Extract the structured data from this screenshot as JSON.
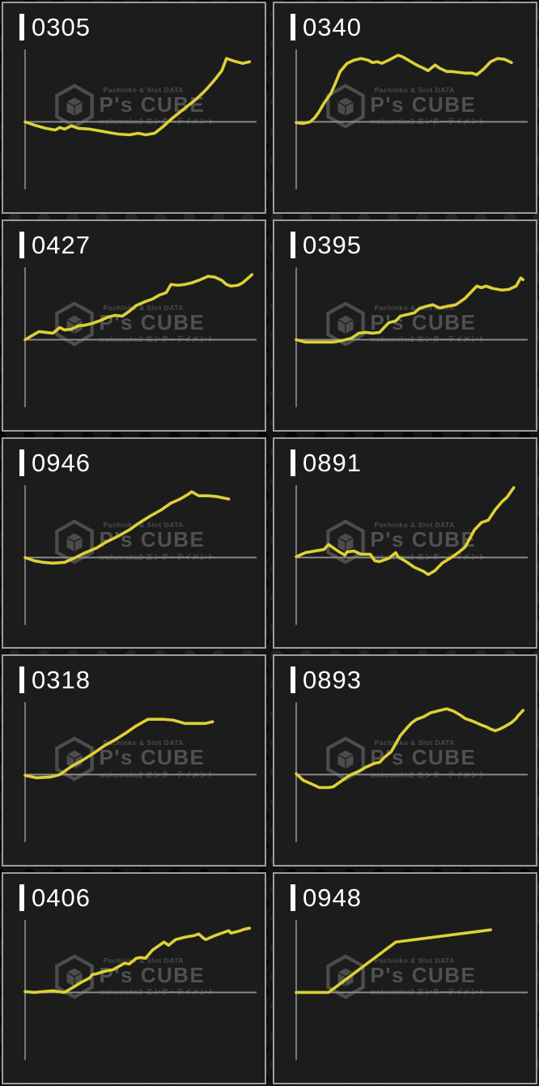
{
  "watermark": {
    "top_text": "Pachinko & Slot DATA",
    "brand": "P's CUBE",
    "bottom_text": "wakuwaku2 エンターテイメント"
  },
  "colors": {
    "page_bg": "#131313",
    "panel_bg": "#1c1c1c",
    "panel_border": "#9d9d9d",
    "axis": "#8f8f8f",
    "line": "#ddd136",
    "label_text": "#ffffff",
    "watermark_text": "#4c4c4c"
  },
  "chart_data": [
    {
      "type": "line",
      "label": "0305",
      "xlabel": "",
      "ylabel": "",
      "x_range": [
        0,
        100
      ],
      "baseline": 0,
      "y_unit": "px_from_baseline(+up)",
      "points": [
        [
          0,
          0
        ],
        [
          4,
          -4
        ],
        [
          9,
          -8
        ],
        [
          13,
          -10
        ],
        [
          15,
          -7
        ],
        [
          17,
          -9
        ],
        [
          20,
          -5
        ],
        [
          23,
          -8
        ],
        [
          28,
          -9
        ],
        [
          34,
          -12
        ],
        [
          40,
          -15
        ],
        [
          45,
          -16
        ],
        [
          49,
          -14
        ],
        [
          52,
          -16
        ],
        [
          56,
          -14
        ],
        [
          60,
          -5
        ],
        [
          63,
          3
        ],
        [
          66,
          10
        ],
        [
          70,
          19
        ],
        [
          74,
          28
        ],
        [
          78,
          39
        ],
        [
          82,
          52
        ],
        [
          85,
          63
        ],
        [
          87,
          78
        ],
        [
          90,
          75
        ],
        [
          94,
          72
        ],
        [
          97,
          74
        ]
      ]
    },
    {
      "type": "line",
      "label": "0340",
      "xlabel": "",
      "ylabel": "",
      "x_range": [
        0,
        100
      ],
      "baseline": 0,
      "y_unit": "px_from_baseline(+up)",
      "points": [
        [
          0,
          -1
        ],
        [
          3,
          -2
        ],
        [
          6,
          0
        ],
        [
          8,
          5
        ],
        [
          10,
          13
        ],
        [
          12,
          23
        ],
        [
          15,
          35
        ],
        [
          17,
          48
        ],
        [
          19,
          62
        ],
        [
          22,
          72
        ],
        [
          25,
          76
        ],
        [
          28,
          78
        ],
        [
          31,
          76
        ],
        [
          33,
          73
        ],
        [
          35,
          74
        ],
        [
          37,
          72
        ],
        [
          40,
          76
        ],
        [
          42,
          79
        ],
        [
          44,
          82
        ],
        [
          46,
          80
        ],
        [
          49,
          75
        ],
        [
          52,
          70
        ],
        [
          55,
          66
        ],
        [
          57,
          63
        ],
        [
          60,
          70
        ],
        [
          62,
          66
        ],
        [
          65,
          62
        ],
        [
          67,
          62
        ],
        [
          70,
          61
        ],
        [
          73,
          60
        ],
        [
          76,
          60
        ],
        [
          78,
          58
        ],
        [
          81,
          65
        ],
        [
          84,
          74
        ],
        [
          87,
          78
        ],
        [
          90,
          77
        ],
        [
          93,
          73
        ]
      ]
    },
    {
      "type": "line",
      "label": "0427",
      "xlabel": "",
      "ylabel": "",
      "x_range": [
        0,
        100
      ],
      "baseline": 0,
      "y_unit": "px_from_baseline(+up)",
      "points": [
        [
          0,
          0
        ],
        [
          3,
          5
        ],
        [
          6,
          10
        ],
        [
          9,
          9
        ],
        [
          12,
          8
        ],
        [
          15,
          15
        ],
        [
          17,
          12
        ],
        [
          20,
          13
        ],
        [
          23,
          17
        ],
        [
          26,
          18
        ],
        [
          29,
          20
        ],
        [
          32,
          23
        ],
        [
          36,
          28
        ],
        [
          39,
          30
        ],
        [
          42,
          29
        ],
        [
          45,
          35
        ],
        [
          48,
          42
        ],
        [
          52,
          47
        ],
        [
          55,
          50
        ],
        [
          58,
          55
        ],
        [
          61,
          58
        ],
        [
          63,
          68
        ],
        [
          66,
          67
        ],
        [
          69,
          68
        ],
        [
          72,
          70
        ],
        [
          75,
          73
        ],
        [
          79,
          78
        ],
        [
          82,
          77
        ],
        [
          85,
          73
        ],
        [
          87,
          68
        ],
        [
          89,
          66
        ],
        [
          92,
          67
        ],
        [
          94,
          70
        ],
        [
          96,
          75
        ],
        [
          98,
          80
        ]
      ]
    },
    {
      "type": "line",
      "label": "0395",
      "xlabel": "",
      "ylabel": "",
      "x_range": [
        0,
        100
      ],
      "baseline": 0,
      "y_unit": "px_from_baseline(+up)",
      "points": [
        [
          0,
          0
        ],
        [
          4,
          -3
        ],
        [
          8,
          -3
        ],
        [
          12,
          -3
        ],
        [
          16,
          -3
        ],
        [
          20,
          -1
        ],
        [
          24,
          2
        ],
        [
          27,
          8
        ],
        [
          30,
          9
        ],
        [
          33,
          8
        ],
        [
          36,
          9
        ],
        [
          40,
          21
        ],
        [
          43,
          23
        ],
        [
          45,
          29
        ],
        [
          48,
          31
        ],
        [
          51,
          33
        ],
        [
          53,
          38
        ],
        [
          56,
          41
        ],
        [
          59,
          43
        ],
        [
          62,
          39
        ],
        [
          65,
          41
        ],
        [
          69,
          43
        ],
        [
          73,
          51
        ],
        [
          76,
          60
        ],
        [
          78,
          66
        ],
        [
          80,
          64
        ],
        [
          82,
          66
        ],
        [
          85,
          63
        ],
        [
          89,
          61
        ],
        [
          92,
          62
        ],
        [
          95,
          66
        ],
        [
          97,
          76
        ],
        [
          98,
          74
        ]
      ]
    },
    {
      "type": "line",
      "label": "0946",
      "xlabel": "",
      "ylabel": "",
      "x_range": [
        0,
        100
      ],
      "baseline": 0,
      "y_unit": "px_from_baseline(+up)",
      "points": [
        [
          0,
          0
        ],
        [
          4,
          -4
        ],
        [
          8,
          -6
        ],
        [
          12,
          -7
        ],
        [
          17,
          -6
        ],
        [
          21,
          -1
        ],
        [
          26,
          6
        ],
        [
          31,
          12
        ],
        [
          35,
          19
        ],
        [
          40,
          26
        ],
        [
          45,
          34
        ],
        [
          49,
          42
        ],
        [
          54,
          51
        ],
        [
          59,
          59
        ],
        [
          63,
          67
        ],
        [
          67,
          72
        ],
        [
          70,
          77
        ],
        [
          72,
          81
        ],
        [
          75,
          76
        ],
        [
          79,
          76
        ],
        [
          83,
          75
        ],
        [
          88,
          72
        ]
      ]
    },
    {
      "type": "line",
      "label": "0891",
      "xlabel": "",
      "ylabel": "",
      "x_range": [
        0,
        100
      ],
      "baseline": 0,
      "y_unit": "px_from_baseline(+up)",
      "points": [
        [
          0,
          1
        ],
        [
          4,
          6
        ],
        [
          8,
          8
        ],
        [
          12,
          10
        ],
        [
          14,
          16
        ],
        [
          18,
          8
        ],
        [
          21,
          3
        ],
        [
          22,
          7
        ],
        [
          25,
          8
        ],
        [
          28,
          4
        ],
        [
          32,
          4
        ],
        [
          34,
          -4
        ],
        [
          36,
          -5
        ],
        [
          40,
          -1
        ],
        [
          43,
          6
        ],
        [
          44,
          1
        ],
        [
          48,
          -6
        ],
        [
          51,
          -12
        ],
        [
          55,
          -17
        ],
        [
          57,
          -21
        ],
        [
          60,
          -16
        ],
        [
          63,
          -7
        ],
        [
          67,
          0
        ],
        [
          70,
          6
        ],
        [
          73,
          13
        ],
        [
          77,
          34
        ],
        [
          80,
          43
        ],
        [
          83,
          46
        ],
        [
          86,
          59
        ],
        [
          89,
          69
        ],
        [
          91,
          74
        ],
        [
          94,
          86
        ]
      ]
    },
    {
      "type": "line",
      "label": "0318",
      "xlabel": "",
      "ylabel": "",
      "x_range": [
        0,
        100
      ],
      "baseline": 0,
      "y_unit": "px_from_baseline(+up)",
      "points": [
        [
          0,
          -1
        ],
        [
          5,
          -4
        ],
        [
          11,
          -3
        ],
        [
          15,
          0
        ],
        [
          20,
          10
        ],
        [
          25,
          18
        ],
        [
          30,
          27
        ],
        [
          34,
          35
        ],
        [
          39,
          43
        ],
        [
          44,
          52
        ],
        [
          48,
          60
        ],
        [
          53,
          68
        ],
        [
          60,
          68
        ],
        [
          64,
          67
        ],
        [
          69,
          63
        ],
        [
          74,
          63
        ],
        [
          78,
          63
        ],
        [
          81,
          65
        ]
      ]
    },
    {
      "type": "line",
      "label": "0893",
      "xlabel": "",
      "ylabel": "",
      "x_range": [
        0,
        100
      ],
      "baseline": 0,
      "y_unit": "px_from_baseline(+up)",
      "points": [
        [
          0,
          1
        ],
        [
          3,
          -7
        ],
        [
          7,
          -12
        ],
        [
          10,
          -16
        ],
        [
          14,
          -16
        ],
        [
          16,
          -15
        ],
        [
          20,
          -7
        ],
        [
          23,
          -1
        ],
        [
          27,
          4
        ],
        [
          30,
          9
        ],
        [
          34,
          14
        ],
        [
          36,
          15
        ],
        [
          38,
          21
        ],
        [
          41,
          28
        ],
        [
          43,
          38
        ],
        [
          45,
          48
        ],
        [
          48,
          58
        ],
        [
          50,
          64
        ],
        [
          52,
          68
        ],
        [
          55,
          71
        ],
        [
          58,
          76
        ],
        [
          62,
          79
        ],
        [
          65,
          81
        ],
        [
          68,
          78
        ],
        [
          71,
          73
        ],
        [
          73,
          69
        ],
        [
          76,
          66
        ],
        [
          80,
          61
        ],
        [
          82,
          59
        ],
        [
          84,
          56
        ],
        [
          86,
          54
        ],
        [
          88,
          56
        ],
        [
          90,
          59
        ],
        [
          93,
          64
        ],
        [
          95,
          69
        ],
        [
          96,
          73
        ],
        [
          98,
          79
        ]
      ]
    },
    {
      "type": "line",
      "label": "0406",
      "xlabel": "",
      "ylabel": "",
      "x_range": [
        0,
        100
      ],
      "baseline": 0,
      "y_unit": "px_from_baseline(+up)",
      "points": [
        [
          0,
          1
        ],
        [
          4,
          0
        ],
        [
          8,
          1
        ],
        [
          12,
          2
        ],
        [
          17,
          0
        ],
        [
          20,
          5
        ],
        [
          24,
          12
        ],
        [
          28,
          18
        ],
        [
          29,
          22
        ],
        [
          31,
          23
        ],
        [
          33,
          25
        ],
        [
          36,
          27
        ],
        [
          38,
          28
        ],
        [
          43,
          36
        ],
        [
          45,
          35
        ],
        [
          48,
          42
        ],
        [
          50,
          43
        ],
        [
          52,
          42
        ],
        [
          55,
          52
        ],
        [
          59,
          60
        ],
        [
          60,
          62
        ],
        [
          62,
          58
        ],
        [
          65,
          65
        ],
        [
          69,
          68
        ],
        [
          73,
          70
        ],
        [
          75,
          72
        ],
        [
          77,
          67
        ],
        [
          78,
          65
        ],
        [
          82,
          70
        ],
        [
          85,
          73
        ],
        [
          88,
          76
        ],
        [
          89,
          73
        ],
        [
          93,
          76
        ],
        [
          95,
          78
        ],
        [
          97,
          79
        ]
      ]
    },
    {
      "type": "line",
      "label": "0948",
      "xlabel": "",
      "ylabel": "",
      "x_range": [
        0,
        100
      ],
      "baseline": 0,
      "y_unit": "px_from_baseline(+up)",
      "points": [
        [
          0,
          0
        ],
        [
          14,
          0
        ],
        [
          43,
          62
        ],
        [
          84,
          77
        ]
      ]
    }
  ]
}
